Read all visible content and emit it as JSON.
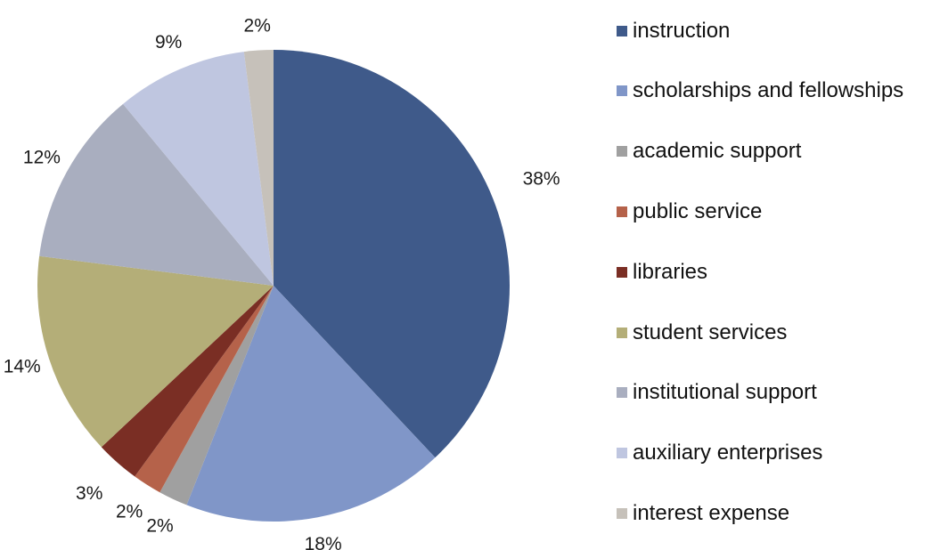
{
  "chart_data": {
    "type": "pie",
    "categories": [
      "instruction",
      "scholarships and fellowships",
      "academic support",
      "public service",
      "libraries",
      "student services",
      "institutional support",
      "auxiliary enterprises",
      "interest expense"
    ],
    "values": [
      38,
      18,
      2,
      2,
      3,
      14,
      12,
      9,
      2
    ],
    "labels": [
      "38%",
      "18%",
      "2%",
      "2%",
      "3%",
      "14%",
      "12%",
      "9%",
      "2%"
    ],
    "colors": [
      "#3F5A8A",
      "#8096C8",
      "#A0A0A0",
      "#B5624A",
      "#7A2E24",
      "#B4AE78",
      "#A9AEBF",
      "#BFC6E0",
      "#C6C1BA"
    ],
    "legend_placement": "right"
  }
}
